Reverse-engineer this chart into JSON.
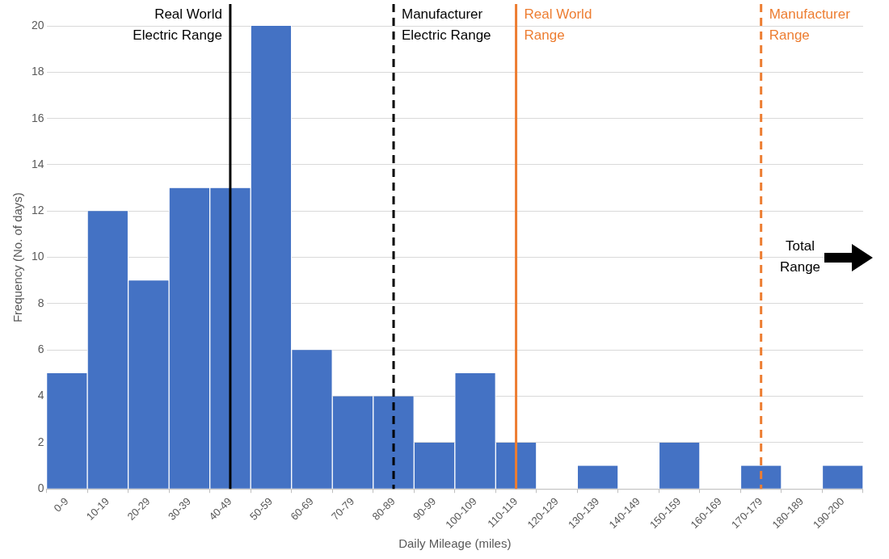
{
  "chart_data": {
    "type": "bar",
    "xlabel": "Daily Mileage (miles)",
    "ylabel": "Frequency (No. of days)",
    "categories": [
      "0-9",
      "10-19",
      "20-29",
      "30-39",
      "40-49",
      "50-59",
      "60-69",
      "70-79",
      "80-89",
      "90-99",
      "100-109",
      "110-119",
      "120-129",
      "130-139",
      "140-149",
      "150-159",
      "160-169",
      "170-179",
      "180-189",
      "190-200"
    ],
    "values": [
      5,
      12,
      9,
      13,
      13,
      20,
      6,
      4,
      4,
      2,
      5,
      2,
      0,
      1,
      0,
      2,
      0,
      1,
      0,
      1
    ],
    "color": "#4472c4",
    "ylim": [
      0,
      20
    ],
    "yticks": [
      0,
      2,
      4,
      6,
      8,
      10,
      12,
      14,
      16,
      18,
      20
    ],
    "grid": "y",
    "legend": false,
    "ref_lines": [
      {
        "axis": "x",
        "value": "40-49",
        "label": "Real World Electric Range",
        "color": "#000000",
        "line_style": "solid"
      },
      {
        "axis": "x",
        "value": "80-89",
        "label": "Manufacturer Electric Range",
        "color": "#000000",
        "line_style": "dashed"
      },
      {
        "axis": "x",
        "value": "110-119",
        "label": "Real World Range",
        "color": "#ed7d31",
        "line_style": "solid"
      },
      {
        "axis": "x",
        "value": "170-179",
        "label": "Manufacturer Range",
        "color": "#ed7d31",
        "line_style": "dashed"
      }
    ],
    "annotations": [
      "Total Range"
    ]
  }
}
